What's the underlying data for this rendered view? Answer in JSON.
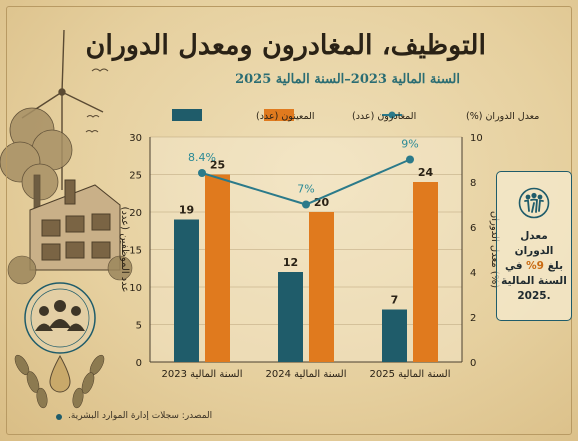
{
  "title": "التوظيف، المغادرون ومعدل الدوران",
  "subtitle": "السنة المالية 2023–السنة المالية 2025",
  "source": "المصدر: سجلات إدارة الموارد البشرية.",
  "callout": {
    "line1": "معدل الدوران",
    "line2_pre": "بلغ ",
    "line2_hl": "9%",
    "line2_post": " في",
    "line3": "السنة المالية",
    "line4": ".2025"
  },
  "colors": {
    "hires": "#1f5c6a",
    "leavers": "#e07a1e",
    "rate": "#2b7a8a",
    "rate_label": "#2b8a96",
    "ink": "#2a2216"
  },
  "chart_data": {
    "type": "bar",
    "categories": [
      "السنة المالية 2023",
      "السنة المالية 2024",
      "السنة المالية 2025"
    ],
    "series": [
      {
        "name": "المعينون (عدد)",
        "values": [
          19,
          12,
          7
        ],
        "axis": "left",
        "kind": "bar"
      },
      {
        "name": "المغادرون (عدد)",
        "values": [
          25,
          20,
          24
        ],
        "axis": "left",
        "kind": "bar"
      },
      {
        "name": "معدل الدوران (%)",
        "values": [
          8.4,
          7,
          9
        ],
        "value_labels": [
          "8.4%",
          "7%",
          "9%"
        ],
        "axis": "right",
        "kind": "line"
      }
    ],
    "ylabel": "عدد الموظفين (عدد)",
    "y2label": "معدل الدوران (%)",
    "ylim": [
      0,
      30
    ],
    "y2lim": [
      0,
      10
    ],
    "yticks": [
      0,
      5,
      10,
      15,
      20,
      25,
      30
    ],
    "y2ticks": [
      0,
      2,
      4,
      6,
      8,
      10
    ],
    "grid": true,
    "legend_position": "top"
  }
}
